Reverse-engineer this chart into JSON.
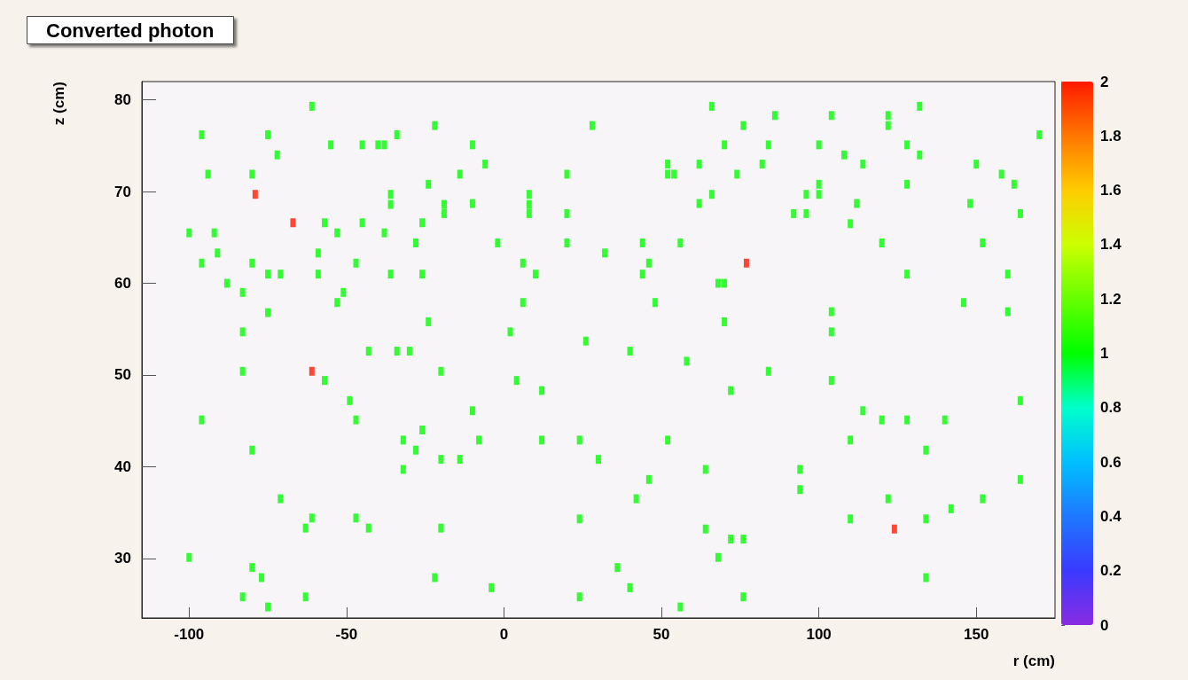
{
  "chart_data": {
    "type": "scatter",
    "title": "Converted photon",
    "xlabel": "r (cm)",
    "ylabel": "z (cm)",
    "xlim": [
      -115,
      175
    ],
    "xticks": [
      -100,
      -50,
      0,
      50,
      100,
      150
    ],
    "ylim": [
      23.5,
      82
    ],
    "yticks": [
      30,
      40,
      50,
      60,
      70,
      80
    ],
    "clim": [
      0,
      2
    ],
    "cticks": [
      0,
      0.2,
      0.4,
      0.6,
      0.8,
      1,
      1.2,
      1.4,
      1.6,
      1.8,
      2
    ],
    "marker": "square",
    "grid": false,
    "x": [
      -61,
      -22,
      -96,
      -75,
      -34,
      -55,
      -45,
      -40,
      -38,
      -72,
      -94,
      -80,
      -24,
      -79,
      -36,
      -36,
      -19,
      -19,
      -67,
      -57,
      -45,
      -26,
      -100,
      -92,
      -53,
      -38,
      -28,
      -91,
      -59,
      -96,
      -80,
      -47,
      -75,
      -71,
      -59,
      -36,
      -26,
      -88,
      -83,
      -51,
      -53,
      -75,
      -24,
      -83,
      -43,
      -34,
      -30,
      66,
      28,
      76,
      -10,
      70,
      -6,
      52,
      52,
      54,
      62,
      -14,
      20,
      74,
      8,
      8,
      8,
      -10,
      66,
      62,
      20,
      -2,
      20,
      44,
      56,
      32,
      6,
      46,
      10,
      44,
      68,
      70,
      77,
      6,
      48,
      70,
      2,
      26,
      40,
      132,
      86,
      104,
      122,
      122,
      170,
      84,
      100,
      128,
      108,
      132,
      82,
      114,
      150,
      158,
      128,
      162,
      100,
      100,
      96,
      112,
      148,
      92,
      96,
      164,
      110,
      120,
      152,
      128,
      160,
      146,
      104,
      160,
      104,
      -83,
      -61,
      -20,
      -57,
      -49,
      -96,
      -47,
      -26,
      -32,
      -28,
      -20,
      -80,
      -32,
      -71,
      -61,
      -47,
      -63,
      -43,
      -20,
      -100,
      -80,
      -77,
      -22,
      -83,
      -63,
      -75,
      58,
      4,
      12,
      72,
      -10,
      -8,
      12,
      24,
      52,
      -14,
      30,
      64,
      46,
      42,
      24,
      64,
      72,
      76,
      68,
      36,
      -4,
      40,
      24,
      76,
      56,
      84,
      104,
      164,
      114,
      120,
      128,
      140,
      110,
      134,
      94,
      94,
      164,
      122,
      152,
      142,
      110,
      134,
      124,
      134
    ],
    "values": [
      79.3,
      77.2,
      76.2,
      76.2,
      76.2,
      75.1,
      75.1,
      75.1,
      75.1,
      74,
      71.9,
      71.9,
      70.8,
      69.7,
      69.7,
      68.6,
      68.6,
      67.6,
      66.6,
      66.6,
      66.6,
      66.6,
      65.5,
      65.5,
      65.5,
      65.5,
      64.4,
      63.3,
      63.3,
      62.2,
      62.2,
      62.2,
      61,
      61,
      61,
      61,
      61,
      60,
      59,
      59,
      57.9,
      56.8,
      55.8,
      54.7,
      52.6,
      52.6,
      52.6,
      79.3,
      77.2,
      77.2,
      75.1,
      75.1,
      73,
      73,
      71.9,
      71.9,
      73,
      71.9,
      71.9,
      71.9,
      69.7,
      68.6,
      67.6,
      68.7,
      69.7,
      68.7,
      67.6,
      64.4,
      64.4,
      64.4,
      64.4,
      63.3,
      62.2,
      62.2,
      61,
      61,
      60,
      60,
      62.2,
      57.9,
      57.9,
      55.8,
      54.7,
      53.7,
      52.6,
      79.3,
      78.3,
      78.3,
      78.3,
      77.2,
      76.2,
      75.1,
      75.1,
      75.1,
      74,
      74,
      73,
      73,
      73,
      71.9,
      70.8,
      70.8,
      70.8,
      69.7,
      69.7,
      68.7,
      68.7,
      67.6,
      67.6,
      67.6,
      66.5,
      64.4,
      64.4,
      61,
      61,
      57.9,
      56.9,
      56.9,
      54.7,
      50.4,
      50.4,
      50.4,
      49.4,
      47.2,
      45.1,
      45.1,
      44,
      42.9,
      41.8,
      40.8,
      41.8,
      39.7,
      36.5,
      34.4,
      34.4,
      33.3,
      33.3,
      33.3,
      30.1,
      29,
      27.9,
      27.9,
      25.8,
      25.8,
      24.7,
      51.5,
      49.4,
      48.3,
      48.3,
      46.1,
      42.9,
      42.9,
      42.9,
      42.9,
      40.8,
      40.8,
      39.7,
      38.6,
      36.5,
      34.3,
      33.2,
      32.1,
      32.1,
      30.1,
      29,
      26.8,
      26.8,
      25.8,
      25.8,
      24.7,
      50.4,
      49.4,
      47.2,
      46.1,
      45.1,
      45.1,
      45.1,
      42.9,
      41.8,
      39.7,
      37.5,
      38.6,
      36.5,
      36.5,
      35.4,
      34.3,
      34.3,
      33.2,
      27.9
    ],
    "cvalues": [
      1,
      1,
      1,
      1,
      1,
      1,
      1,
      1,
      1,
      1,
      1,
      1,
      1,
      2,
      1,
      1,
      1,
      1,
      2,
      1,
      1,
      1,
      1,
      1,
      1,
      1,
      1,
      1,
      1,
      1,
      1,
      1,
      1,
      1,
      1,
      1,
      1,
      1,
      1,
      1,
      1,
      1,
      1,
      1,
      1,
      1,
      1,
      1,
      1,
      1,
      1,
      1,
      1,
      1,
      1,
      1,
      1,
      1,
      1,
      1,
      1,
      1,
      1,
      1,
      1,
      1,
      1,
      1,
      1,
      1,
      1,
      1,
      1,
      1,
      1,
      1,
      1,
      1,
      2,
      1,
      1,
      1,
      1,
      1,
      1,
      1,
      1,
      1,
      1,
      1,
      1,
      1,
      1,
      1,
      1,
      1,
      1,
      1,
      1,
      1,
      1,
      1,
      1,
      1,
      1,
      1,
      1,
      1,
      1,
      1,
      1,
      1,
      1,
      1,
      1,
      1,
      1,
      1,
      1,
      1,
      2,
      1,
      1,
      1,
      1,
      1,
      1,
      1,
      1,
      1,
      1,
      1,
      1,
      1,
      1,
      1,
      1,
      1,
      1,
      1,
      1,
      1,
      1,
      1,
      1,
      1,
      1,
      1,
      1,
      1,
      1,
      1,
      1,
      1,
      1,
      1,
      1,
      1,
      1,
      1,
      1,
      1,
      1,
      1,
      1,
      1,
      1,
      1,
      1,
      1,
      1,
      1,
      1,
      1,
      1,
      1,
      1,
      1,
      1,
      1,
      1,
      1,
      1,
      1,
      1,
      1,
      1,
      2,
      1
    ]
  }
}
